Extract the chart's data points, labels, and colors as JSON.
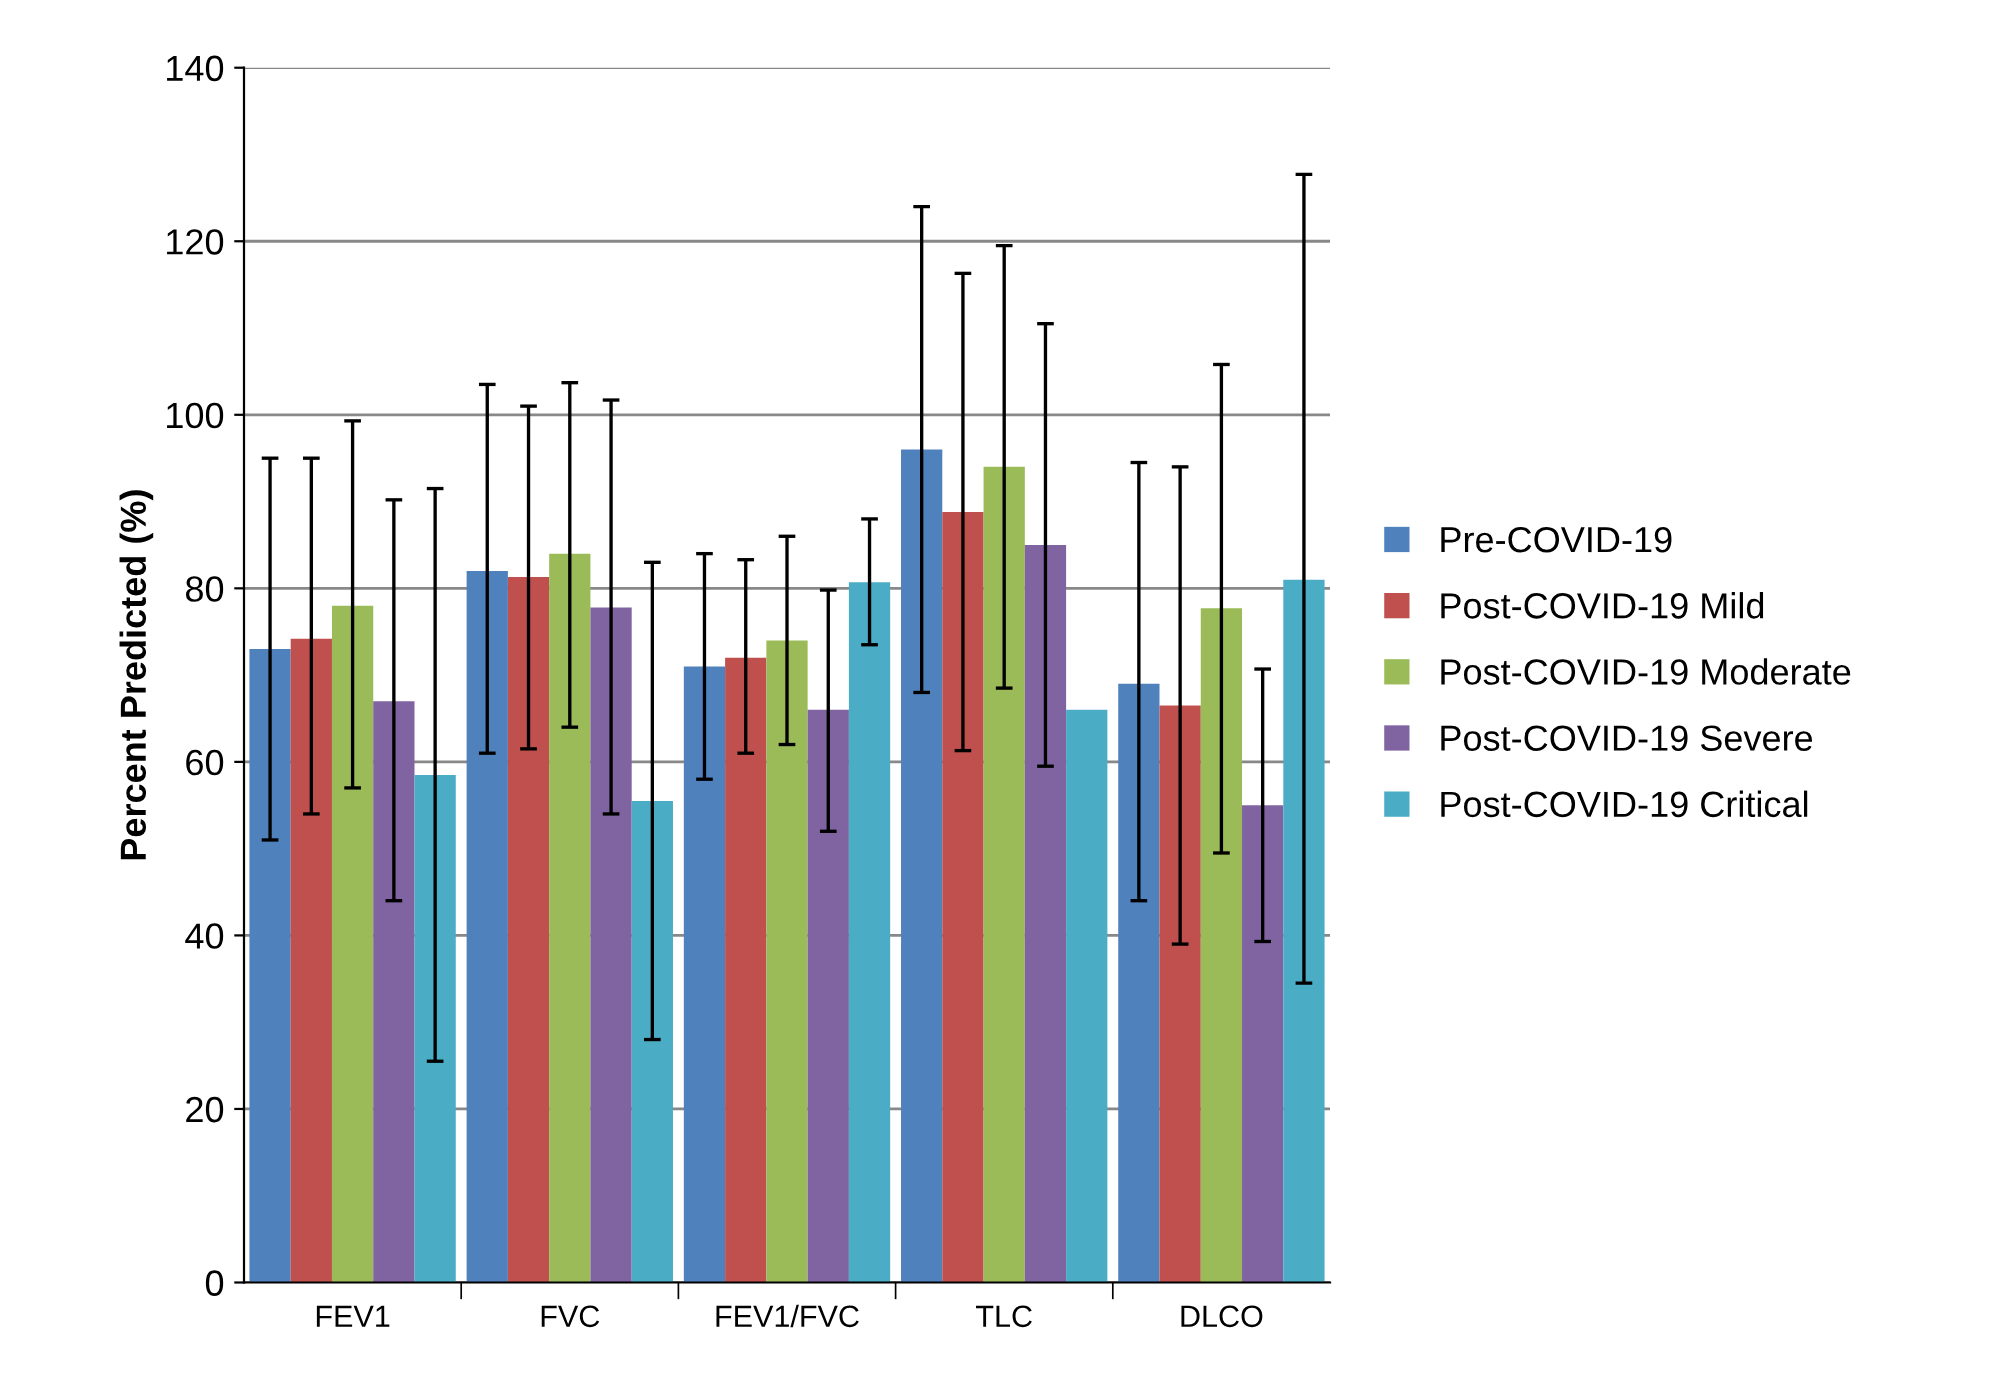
{
  "chart_data": {
    "type": "bar",
    "ylabel": "Percent Predicted (%)",
    "categories": [
      "FEV1",
      "FVC",
      "FEV1/FVC",
      "TLC",
      "DLCO"
    ],
    "ylim": [
      0,
      140
    ],
    "yticks": [
      0,
      20,
      40,
      60,
      80,
      100,
      120,
      140
    ],
    "grid": "y",
    "legend": "right",
    "series": [
      {
        "name": "Pre-COVID-19",
        "color": "#4f81bd",
        "values": [
          73,
          82,
          71,
          96,
          69
        ],
        "errors": [
          [
            51,
            95
          ],
          [
            61,
            103.5
          ],
          [
            58,
            84
          ],
          [
            68,
            124
          ],
          [
            44,
            94.5
          ]
        ]
      },
      {
        "name": "Post-COVID-19 Mild",
        "color": "#c0504d",
        "values": [
          74.2,
          81.3,
          72,
          88.8,
          66.5
        ],
        "errors": [
          [
            54,
            95
          ],
          [
            61.5,
            101
          ],
          [
            61,
            83.3
          ],
          [
            61.3,
            116.3
          ],
          [
            39,
            94
          ]
        ]
      },
      {
        "name": "Post-COVID-19 Moderate",
        "color": "#9bbb59",
        "values": [
          78,
          84,
          74,
          94,
          77.7
        ],
        "errors": [
          [
            57,
            99.3
          ],
          [
            64,
            103.7
          ],
          [
            62,
            86
          ],
          [
            68.5,
            119.5
          ],
          [
            49.5,
            105.8
          ]
        ]
      },
      {
        "name": "Post-COVID-19 Severe",
        "color": "#8064a2",
        "values": [
          67,
          77.8,
          66,
          85,
          55
        ],
        "errors": [
          [
            44,
            90.2
          ],
          [
            54,
            101.7
          ],
          [
            52,
            79.8
          ],
          [
            59.5,
            110.5
          ],
          [
            39.3,
            70.7
          ]
        ]
      },
      {
        "name": "Post-COVID-19 Critical",
        "color": "#4bacc6",
        "values": [
          58.5,
          55.5,
          80.7,
          66,
          81
        ],
        "errors": [
          [
            25.5,
            91.5
          ],
          [
            28,
            83
          ],
          [
            73.5,
            88
          ],
          null,
          [
            34.5,
            127.7
          ]
        ]
      }
    ]
  }
}
